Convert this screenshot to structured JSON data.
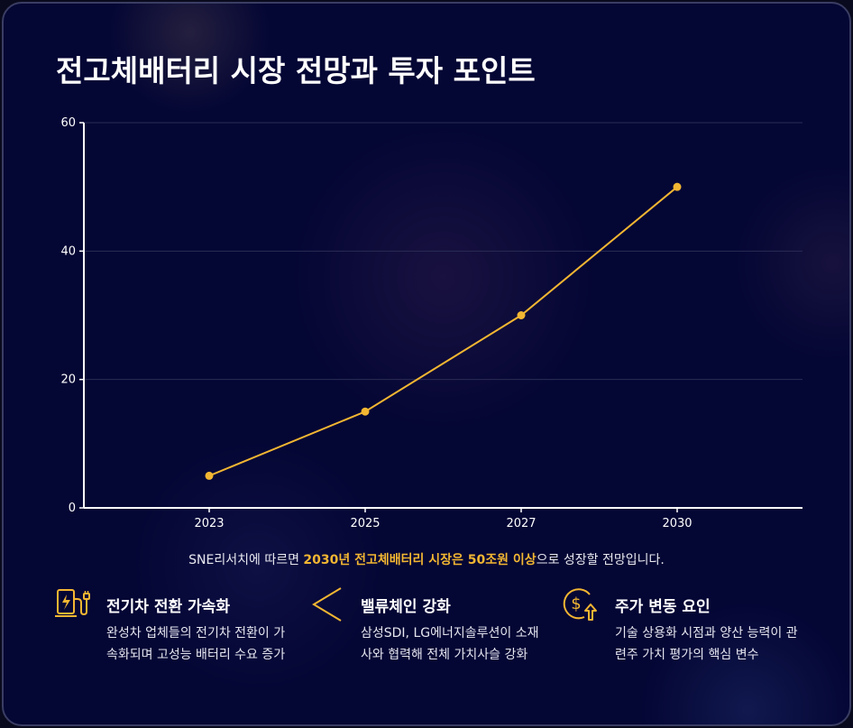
{
  "title": "전고체배터리 시장 전망과 투자 포인트",
  "chart_data": {
    "type": "line",
    "x": [
      "2023",
      "2025",
      "2027",
      "2030"
    ],
    "series": [
      {
        "values": [
          5,
          15,
          30,
          50
        ]
      }
    ],
    "yticks": [
      "0",
      "20",
      "40",
      "60"
    ],
    "ylim": [
      0,
      60
    ],
    "grid": true,
    "line_color": "#f2b632"
  },
  "caption": {
    "before": "SNE리서치에 따르면 ",
    "highlight": "2030년 전고체배터리 시장은 50조원 이상",
    "after": "으로 성장할 전망입니다."
  },
  "points": [
    {
      "icon": "ev-charger-icon",
      "title": "전기차 전환 가속화",
      "desc": "완성차 업체들의 전기차 전환이 가속화되며 고성능 배터리 수요 증가"
    },
    {
      "icon": "chevron-left-icon",
      "title": "밸류체인 강화",
      "desc": "삼성SDI, LG에너지솔루션이 소재사와 협력해 전체 가치사슬 강화"
    },
    {
      "icon": "dollar-up-icon",
      "title": "주가 변동 요인",
      "desc": "기술 상용화 시점과 양산 능력이 관련주 가치 평가의 핵심 변수"
    }
  ],
  "colors": {
    "accent": "#f2b632",
    "background": "#040634"
  }
}
